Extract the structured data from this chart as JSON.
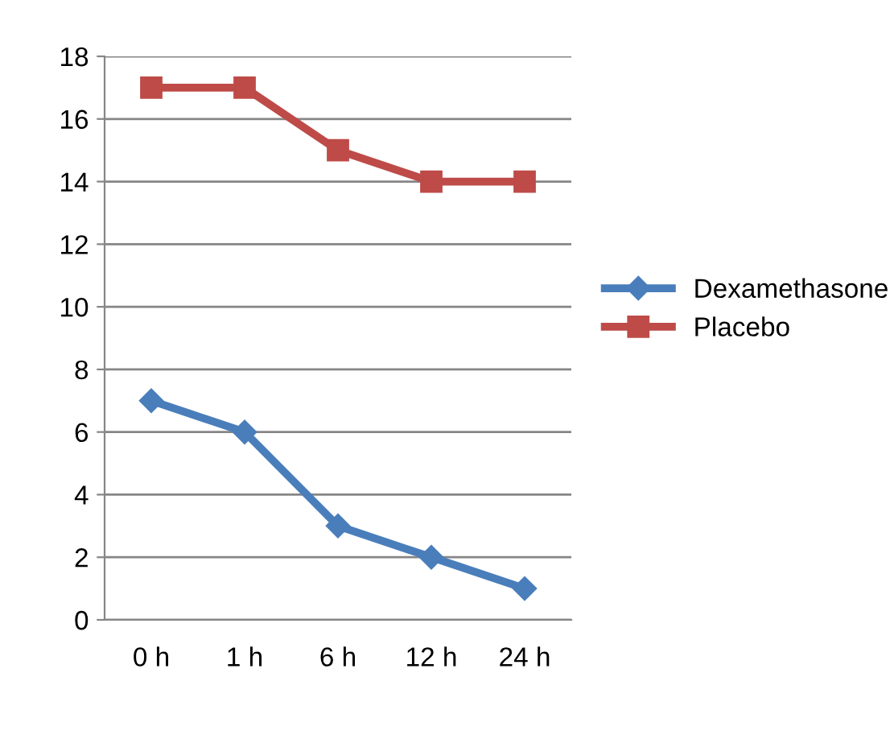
{
  "chart_data": {
    "type": "line",
    "categories": [
      "0 h",
      "1 h",
      "6 h",
      "12 h",
      "24 h"
    ],
    "series": [
      {
        "name": "Dexamethasone",
        "color": "#4a7ebb",
        "marker": "diamond",
        "values": [
          7,
          6,
          3,
          2,
          1
        ]
      },
      {
        "name": "Placebo",
        "color": "#be4b48",
        "marker": "square",
        "values": [
          17,
          17,
          15,
          14,
          14
        ]
      }
    ],
    "ylim": [
      0,
      18
    ],
    "yticks": [
      0,
      2,
      4,
      6,
      8,
      10,
      12,
      14,
      16,
      18
    ],
    "grid": "y",
    "legend": "right",
    "line_style": "solid"
  }
}
